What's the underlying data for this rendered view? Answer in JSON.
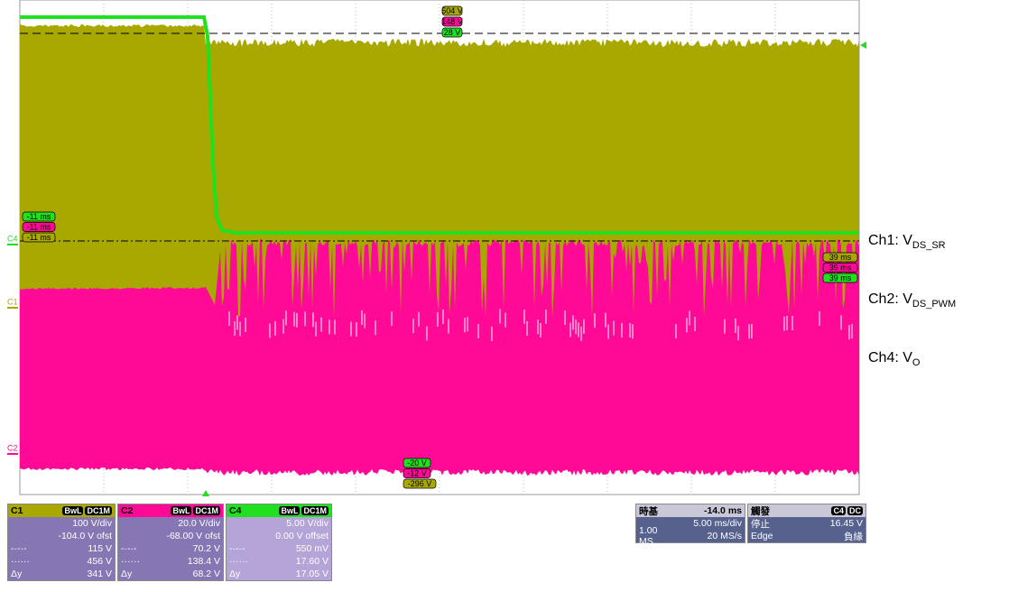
{
  "markers": {
    "top": [
      "504 V",
      "148 V",
      "28 V"
    ],
    "left": [
      "-11 ms",
      "-11 ms",
      "-11 ms"
    ],
    "right": [
      "39 ms",
      "39 ms",
      "39 ms"
    ],
    "bottom": [
      "-20 V",
      "-12 V",
      "-296 V"
    ]
  },
  "channel_tags": [
    "C4",
    "C1",
    "C2"
  ],
  "legend": [
    {
      "prefix": "Ch1: V",
      "sub": "DS_SR"
    },
    {
      "prefix": "Ch2: V",
      "sub": "DS_PWM"
    },
    {
      "prefix": "Ch4: V",
      "sub": "O"
    }
  ],
  "panels": [
    {
      "name": "C1",
      "tags": [
        "BwL",
        "DC1M"
      ],
      "rows": [
        [
          "",
          "100 V/div"
        ],
        [
          "",
          "-104.0 V ofst"
        ],
        [
          "-·-·-",
          "115 V"
        ],
        [
          "······",
          "456 V"
        ],
        [
          "Δy",
          "341 V"
        ]
      ]
    },
    {
      "name": "C2",
      "tags": [
        "BwL",
        "DC1M"
      ],
      "rows": [
        [
          "",
          "20.0 V/div"
        ],
        [
          "",
          "-68.00 V ofst"
        ],
        [
          "-·-·-",
          "70.2 V"
        ],
        [
          "······",
          "138.4 V"
        ],
        [
          "Δy",
          "68.2 V"
        ]
      ]
    },
    {
      "name": "C4",
      "tags": [
        "BwL",
        "DC1M"
      ],
      "rows": [
        [
          "",
          "5.00 V/div"
        ],
        [
          "",
          "0.00 V offset"
        ],
        [
          "-·-·-",
          "550 mV"
        ],
        [
          "······",
          "17.60 V"
        ],
        [
          "Δy",
          "17.05 V"
        ]
      ]
    }
  ],
  "timebase": {
    "title": "時基",
    "delay": "-14.0 ms",
    "rows": [
      [
        "",
        "5.00 ms/div"
      ],
      [
        "1.00 MS",
        "20 MS/s"
      ]
    ]
  },
  "trigger": {
    "title": "觸發",
    "tags": [
      "C4",
      "DC"
    ],
    "rows": [
      [
        "停止",
        "16.45 V"
      ],
      [
        "Edge",
        "負緣"
      ]
    ]
  }
}
